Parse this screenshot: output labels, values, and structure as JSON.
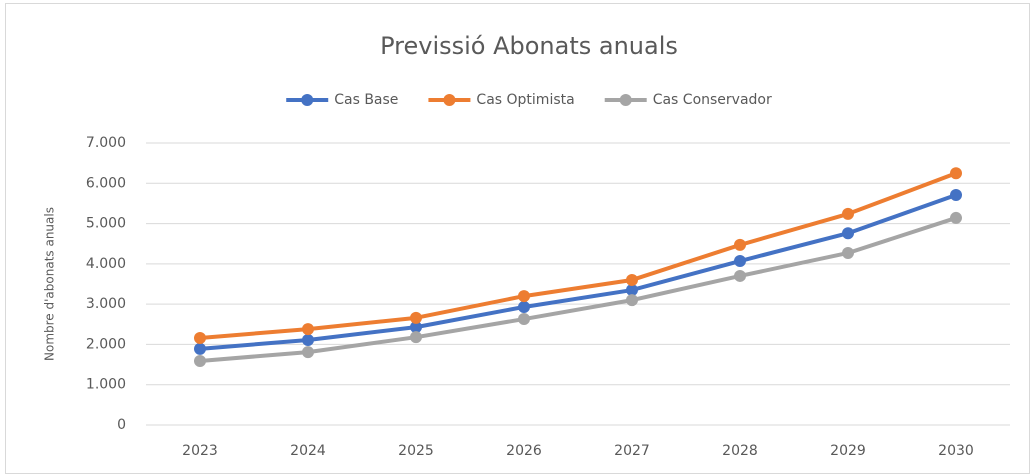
{
  "chart_data": {
    "type": "line",
    "title": "Previssió Abonats anuals",
    "y_label": "Nombre d'abonats anuals",
    "categories": [
      "2023",
      "2024",
      "2025",
      "2026",
      "2027",
      "2028",
      "2029",
      "2030"
    ],
    "series": [
      {
        "name": "Cas Base",
        "color": "#4472c4",
        "values": [
          1890,
          2110,
          2430,
          2930,
          3350,
          4070,
          4760,
          5710
        ]
      },
      {
        "name": "Cas Optimista",
        "color": "#ed7d31",
        "values": [
          2160,
          2380,
          2660,
          3200,
          3600,
          4470,
          5240,
          6250
        ]
      },
      {
        "name": "Cas Conservador",
        "color": "#a5a5a5",
        "values": [
          1590,
          1810,
          2180,
          2630,
          3100,
          3700,
          4270,
          5140
        ]
      }
    ],
    "ylim": [
      0,
      7000
    ],
    "yticks": [
      0,
      {
        "value": 1000,
        "label": "1.000"
      },
      {
        "value": 2000,
        "label": "2.000"
      },
      {
        "value": 3000,
        "label": "3.000"
      },
      {
        "value": 4000,
        "label": "4.000"
      },
      {
        "value": 5000,
        "label": "5.000"
      },
      {
        "value": 6000,
        "label": "6.000"
      },
      {
        "value": 7000,
        "label": "7.000"
      }
    ],
    "grid": true,
    "legend": "top"
  }
}
